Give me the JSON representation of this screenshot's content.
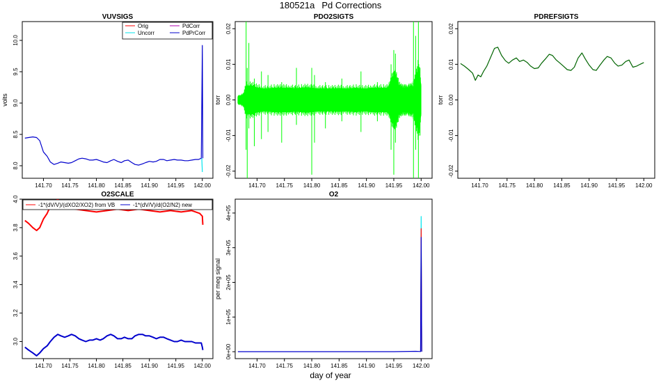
{
  "page": {
    "title_id": "180521a",
    "title_text": "Pd Corrections",
    "xlabel": "day of year"
  },
  "colors": {
    "orig": "#ff0000",
    "uncorr": "#00e5ee",
    "pdcorr": "#b000b0",
    "pdprcorr": "#0000cd",
    "pdo2": "#00ff00",
    "pdref": "#006400",
    "scale_old": "#ff0000",
    "scale_new": "#0000cd"
  },
  "chart_data": [
    {
      "id": "vuvsigs",
      "type": "line",
      "title": "VUVSIGS",
      "xlabel": "",
      "ylabel": "volts",
      "xlim": [
        141.66,
        142.02
      ],
      "ylim": [
        7.8,
        10.3
      ],
      "xticks": [
        "141.70",
        "141.75",
        "141.80",
        "141.85",
        "141.90",
        "141.95",
        "142.00"
      ],
      "yticks": [
        "8.0",
        "8.5",
        "9.0",
        "9.5",
        "10.0"
      ],
      "legend": [
        "Orig",
        "Uncorr",
        "PdCorr",
        "PdPrCorr"
      ],
      "legend_placement": "top-right",
      "series": [
        {
          "name": "PdPrCorr",
          "color_key": "pdprcorr",
          "x": [
            141.665,
            141.672,
            141.68,
            141.687,
            141.693,
            141.7,
            141.707,
            141.713,
            141.72,
            141.727,
            141.733,
            141.74,
            141.747,
            141.753,
            141.76,
            141.767,
            141.773,
            141.78,
            141.787,
            141.793,
            141.8,
            141.807,
            141.813,
            141.82,
            141.827,
            141.833,
            141.84,
            141.847,
            141.853,
            141.86,
            141.867,
            141.873,
            141.88,
            141.887,
            141.893,
            141.9,
            141.907,
            141.913,
            141.92,
            141.927,
            141.933,
            141.94,
            141.947,
            141.953,
            141.96,
            141.967,
            141.973,
            141.98,
            141.987,
            141.993,
            141.998,
            142.0,
            142.001
          ],
          "y": [
            8.44,
            8.45,
            8.46,
            8.45,
            8.4,
            8.22,
            8.15,
            8.06,
            8.02,
            8.04,
            8.06,
            8.05,
            8.04,
            8.05,
            8.08,
            8.11,
            8.12,
            8.11,
            8.09,
            8.09,
            8.1,
            8.08,
            8.06,
            8.05,
            8.08,
            8.1,
            8.07,
            8.05,
            8.08,
            8.09,
            8.05,
            8.02,
            8.01,
            8.03,
            8.05,
            8.07,
            8.06,
            8.07,
            8.1,
            8.1,
            8.08,
            8.09,
            8.1,
            8.09,
            8.09,
            8.08,
            8.08,
            8.09,
            8.1,
            8.1,
            8.12,
            9.92,
            8.12
          ]
        },
        {
          "name": "Uncorr",
          "color_key": "uncorr",
          "x": [
            141.999,
            142.0
          ],
          "y": [
            8.12,
            7.9
          ]
        }
      ]
    },
    {
      "id": "pdo2sigts",
      "type": "line",
      "title": "PDO2SIGTS",
      "xlabel": "",
      "ylabel": "torr",
      "xlim": [
        141.66,
        142.02
      ],
      "ylim": [
        -0.022,
        0.022
      ],
      "xticks": [
        "141.70",
        "141.75",
        "141.80",
        "141.85",
        "141.90",
        "141.95",
        "142.00"
      ],
      "yticks": [
        "-0.02",
        "-0.01",
        "0.00",
        "0.01",
        "0.02"
      ],
      "band": {
        "x": [
          141.665,
          141.67,
          141.675,
          141.68,
          141.69,
          141.7,
          141.71,
          141.72,
          141.73,
          141.74,
          141.75,
          141.76,
          141.77,
          141.78,
          141.79,
          141.8,
          141.81,
          141.82,
          141.83,
          141.84,
          141.85,
          141.86,
          141.87,
          141.88,
          141.89,
          141.9,
          141.91,
          141.92,
          141.93,
          141.94,
          141.945,
          141.95,
          141.955,
          141.96,
          141.965,
          141.97,
          141.975,
          141.98,
          141.985,
          141.99,
          141.995,
          142.0
        ],
        "upper": [
          0.001,
          0.0012,
          0.0015,
          0.004,
          0.004,
          0.0035,
          0.0032,
          0.0032,
          0.0034,
          0.0034,
          0.0034,
          0.0034,
          0.0032,
          0.0034,
          0.0035,
          0.0034,
          0.0032,
          0.0032,
          0.0032,
          0.0032,
          0.0033,
          0.0032,
          0.0032,
          0.0034,
          0.0032,
          0.0032,
          0.0034,
          0.0034,
          0.0034,
          0.0034,
          0.005,
          0.007,
          0.006,
          0.004,
          0.0034,
          0.0034,
          0.0034,
          0.0036,
          0.0038,
          0.006,
          0.009,
          0.004
        ],
        "lower": [
          -0.001,
          -0.0012,
          -0.0015,
          -0.004,
          -0.004,
          -0.0035,
          -0.0032,
          -0.0032,
          -0.0034,
          -0.0034,
          -0.0034,
          -0.0034,
          -0.0032,
          -0.0034,
          -0.0035,
          -0.0034,
          -0.0032,
          -0.0032,
          -0.0032,
          -0.0032,
          -0.0033,
          -0.0032,
          -0.0032,
          -0.0034,
          -0.0032,
          -0.0032,
          -0.0034,
          -0.0034,
          -0.0034,
          -0.0034,
          -0.005,
          -0.007,
          -0.006,
          -0.004,
          -0.0034,
          -0.0034,
          -0.0034,
          -0.0036,
          -0.0038,
          -0.006,
          -0.009,
          -0.004
        ]
      },
      "spikes": [
        {
          "x": 141.68,
          "lo": -0.014,
          "hi": 0.022
        },
        {
          "x": 141.682,
          "lo": -0.022,
          "hi": 0.009
        },
        {
          "x": 141.685,
          "lo": -0.008,
          "hi": 0.016
        },
        {
          "x": 141.695,
          "lo": -0.013,
          "hi": 0.006
        },
        {
          "x": 141.708,
          "lo": -0.011,
          "hi": 0.008
        },
        {
          "x": 141.72,
          "lo": -0.009,
          "hi": 0.007
        },
        {
          "x": 141.745,
          "lo": -0.012,
          "hi": 0.005
        },
        {
          "x": 141.772,
          "lo": -0.007,
          "hi": 0.009
        },
        {
          "x": 141.8,
          "lo": -0.021,
          "hi": 0.009
        },
        {
          "x": 141.805,
          "lo": -0.012,
          "hi": 0.007
        },
        {
          "x": 141.825,
          "lo": -0.008,
          "hi": 0.005
        },
        {
          "x": 141.855,
          "lo": -0.006,
          "hi": 0.006
        },
        {
          "x": 141.89,
          "lo": -0.009,
          "hi": 0.008
        },
        {
          "x": 141.92,
          "lo": -0.006,
          "hi": 0.005
        },
        {
          "x": 141.945,
          "lo": -0.014,
          "hi": 0.01
        },
        {
          "x": 141.95,
          "lo": -0.021,
          "hi": 0.014
        },
        {
          "x": 141.953,
          "lo": -0.012,
          "hi": 0.013
        },
        {
          "x": 141.986,
          "lo": -0.022,
          "hi": 0.022
        },
        {
          "x": 141.99,
          "lo": -0.014,
          "hi": 0.018
        },
        {
          "x": 141.995,
          "lo": -0.022,
          "hi": 0.022
        },
        {
          "x": 141.998,
          "lo": -0.01,
          "hi": 0.009
        }
      ],
      "color_key": "pdo2"
    },
    {
      "id": "pdrefsigts",
      "type": "line",
      "title": "PDREFSIGTS",
      "xlabel": "",
      "ylabel": "torr",
      "xlim": [
        141.66,
        142.02
      ],
      "ylim": [
        -0.022,
        0.022
      ],
      "xticks": [
        "141.70",
        "141.75",
        "141.80",
        "141.85",
        "141.90",
        "141.95",
        "142.00"
      ],
      "yticks": [
        "-0.02",
        "-0.01",
        "0.00",
        "0.01",
        "0.02"
      ],
      "series": [
        {
          "name": "pdref",
          "color_key": "pdref",
          "x": [
            141.665,
            141.672,
            141.68,
            141.687,
            141.692,
            141.697,
            141.702,
            141.707,
            141.713,
            141.72,
            141.727,
            141.733,
            141.74,
            141.747,
            141.753,
            141.76,
            141.767,
            141.773,
            141.78,
            141.787,
            141.793,
            141.8,
            141.807,
            141.813,
            141.82,
            141.827,
            141.833,
            141.84,
            141.847,
            141.853,
            141.86,
            141.867,
            141.873,
            141.88,
            141.887,
            141.893,
            141.9,
            141.907,
            141.913,
            141.92,
            141.927,
            141.933,
            141.94,
            141.947,
            141.953,
            141.96,
            141.967,
            141.973,
            141.98,
            141.987,
            141.993,
            142.0
          ],
          "y": [
            0.0102,
            0.0095,
            0.0085,
            0.0075,
            0.0055,
            0.007,
            0.0065,
            0.008,
            0.0095,
            0.012,
            0.0145,
            0.0148,
            0.0125,
            0.011,
            0.0103,
            0.0112,
            0.0118,
            0.0108,
            0.0112,
            0.0105,
            0.0095,
            0.0088,
            0.009,
            0.0103,
            0.0115,
            0.0128,
            0.0125,
            0.0112,
            0.0103,
            0.0095,
            0.0085,
            0.0083,
            0.0092,
            0.0118,
            0.0132,
            0.0115,
            0.0098,
            0.0085,
            0.0083,
            0.0098,
            0.0112,
            0.0122,
            0.0118,
            0.0103,
            0.0095,
            0.0098,
            0.0108,
            0.0112,
            0.0092,
            0.0095,
            0.01,
            0.0105
          ]
        }
      ]
    },
    {
      "id": "o2scale",
      "type": "line",
      "title": "O2SCALE",
      "xlabel": "",
      "ylabel": "",
      "xlim": [
        141.66,
        142.02
      ],
      "ylim": [
        2.88,
        4.0
      ],
      "xticks": [
        "141.70",
        "141.75",
        "141.80",
        "141.85",
        "141.90",
        "141.95",
        "142.00"
      ],
      "yticks": [
        "3.0",
        "3.2",
        "3.4",
        "3.6",
        "3.8",
        "4.0"
      ],
      "legend": [
        "-1*(dV/V)/(dXO2/XO2) from VB",
        "-1*(dV/V)/d(O2/N2) new"
      ],
      "legend_placement": "top",
      "series": [
        {
          "name": "-1*(dV/V)/(dXO2/XO2) from VB",
          "color_key": "scale_old",
          "x": [
            141.665,
            141.672,
            141.68,
            141.687,
            141.693,
            141.7,
            141.707,
            141.713,
            141.72,
            141.727,
            141.74,
            141.76,
            141.78,
            141.8,
            141.82,
            141.84,
            141.86,
            141.88,
            141.9,
            141.92,
            141.94,
            141.96,
            141.98,
            141.995,
            142.0,
            142.001
          ],
          "y": [
            3.85,
            3.83,
            3.8,
            3.78,
            3.8,
            3.86,
            3.9,
            3.95,
            3.98,
            4.0,
            3.95,
            3.93,
            3.92,
            3.91,
            3.92,
            3.93,
            3.92,
            3.93,
            3.92,
            3.91,
            3.92,
            3.91,
            3.92,
            3.9,
            3.88,
            3.82
          ]
        },
        {
          "name": "-1*(dV/V)/d(O2/N2) new",
          "color_key": "scale_new",
          "x": [
            141.665,
            141.672,
            141.68,
            141.687,
            141.693,
            141.7,
            141.707,
            141.713,
            141.72,
            141.727,
            141.733,
            141.74,
            141.747,
            141.753,
            141.76,
            141.767,
            141.773,
            141.78,
            141.787,
            141.793,
            141.8,
            141.807,
            141.813,
            141.82,
            141.827,
            141.833,
            141.84,
            141.847,
            141.853,
            141.86,
            141.867,
            141.873,
            141.88,
            141.887,
            141.893,
            141.9,
            141.907,
            141.913,
            141.92,
            141.927,
            141.933,
            141.94,
            141.947,
            141.953,
            141.96,
            141.967,
            141.973,
            141.98,
            141.987,
            141.993,
            141.998,
            142.0,
            142.001
          ],
          "y": [
            2.96,
            2.94,
            2.92,
            2.9,
            2.92,
            2.95,
            2.97,
            3.0,
            3.03,
            3.05,
            3.04,
            3.03,
            3.04,
            3.05,
            3.04,
            3.02,
            3.01,
            3.0,
            3.01,
            3.01,
            3.02,
            3.01,
            3.02,
            3.04,
            3.05,
            3.04,
            3.02,
            3.02,
            3.03,
            3.02,
            3.02,
            3.04,
            3.05,
            3.05,
            3.04,
            3.04,
            3.03,
            3.02,
            3.03,
            3.03,
            3.02,
            3.01,
            3.0,
            3.0,
            3.01,
            3.0,
            3.0,
            3.0,
            2.99,
            2.99,
            2.99,
            2.96,
            2.94
          ]
        }
      ]
    },
    {
      "id": "o2",
      "type": "line",
      "title": "O2",
      "xlabel": "",
      "ylabel": "per meg signal",
      "xlim": [
        141.66,
        142.02
      ],
      "ylim": [
        -20000,
        440000
      ],
      "xticks": [
        "141.70",
        "141.75",
        "141.80",
        "141.85",
        "141.90",
        "141.95",
        "142.00"
      ],
      "yticks": [
        "0e+00",
        "1e+05",
        "2e+05",
        "3e+05",
        "4e+05"
      ],
      "series": [
        {
          "name": "Uncorr",
          "color_key": "uncorr",
          "x": [
            141.999,
            142.0,
            142.001
          ],
          "y": [
            0,
            390000,
            0
          ]
        },
        {
          "name": "Orig",
          "color_key": "orig",
          "x": [
            141.999,
            142.0,
            142.001
          ],
          "y": [
            0,
            355000,
            0
          ]
        },
        {
          "name": "PdPrCorr",
          "color_key": "pdprcorr",
          "x": [
            141.665,
            141.7,
            141.75,
            141.8,
            141.85,
            141.9,
            141.95,
            141.99,
            141.999,
            142.0,
            142.001
          ],
          "y": [
            0,
            0,
            0,
            0,
            0,
            0,
            0,
            1000,
            500,
            330000,
            0
          ]
        }
      ]
    }
  ]
}
